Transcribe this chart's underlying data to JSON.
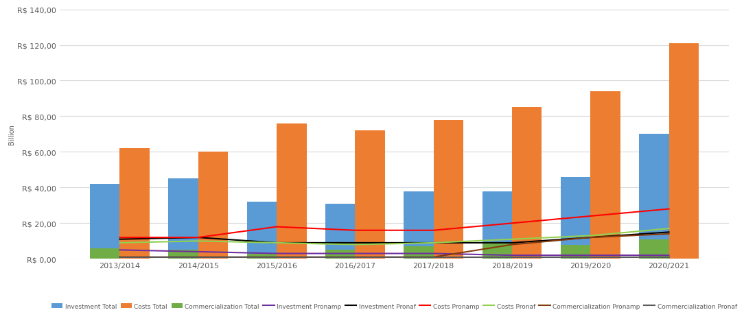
{
  "categories": [
    "2013/2014",
    "2014/2015",
    "2015/2016",
    "2016/2017",
    "2017/2018",
    "2018/2019",
    "2019/2020",
    "2020/2021"
  ],
  "investment_total": [
    42,
    45,
    32,
    31,
    38,
    38,
    46,
    70
  ],
  "costs_total": [
    62,
    60,
    76,
    72,
    78,
    85,
    94,
    121
  ],
  "commercialization_total": [
    6,
    5,
    3,
    5,
    7,
    9,
    8,
    11
  ],
  "investment_pronamp": [
    5,
    4,
    3,
    3,
    3,
    2,
    2,
    2
  ],
  "investment_pronaf": [
    11,
    12,
    9,
    9,
    9,
    9,
    12,
    15
  ],
  "costs_pronamp": [
    12,
    12,
    18,
    16,
    16,
    20,
    24,
    28
  ],
  "costs_pronaf": [
    9,
    10,
    9,
    8,
    9,
    11,
    13,
    17
  ],
  "commercialization_pronamp": [
    1,
    1,
    1,
    1,
    1,
    8,
    12,
    14
  ],
  "commercialization_pronaf": [
    1,
    1,
    1,
    1,
    1,
    1,
    1,
    1
  ],
  "bar_width": 0.38,
  "colors": {
    "investment_total": "#5B9BD5",
    "costs_total": "#ED7D31",
    "commercialization_total": "#70AD47",
    "investment_pronamp": "#7030A0",
    "investment_pronaf": "#000000",
    "costs_pronamp": "#FF0000",
    "costs_pronaf": "#92D050",
    "commercialization_pronamp": "#843C0C",
    "commercialization_pronaf": "#595959"
  },
  "ylim": [
    0,
    140
  ],
  "yticks": [
    0,
    20,
    40,
    60,
    80,
    100,
    120,
    140
  ],
  "ylabel": "Billion",
  "background_color": "#FFFFFF",
  "grid_color": "#D9D9D9"
}
